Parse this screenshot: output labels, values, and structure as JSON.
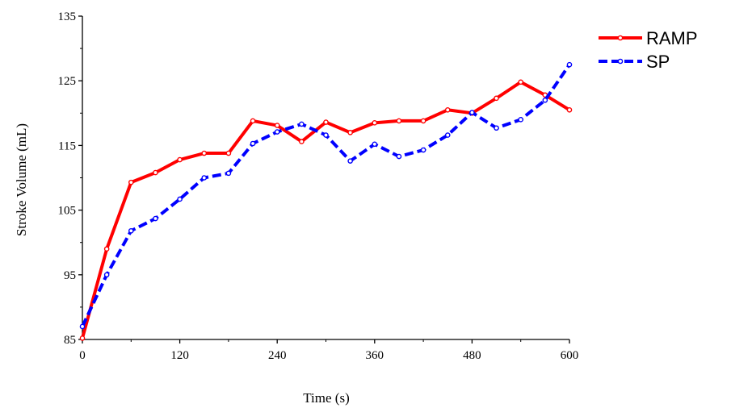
{
  "chart_data": {
    "type": "line",
    "title": "",
    "xlabel": "Time (s)",
    "ylabel": "Stroke Volume (mL)",
    "xlim": [
      0,
      600
    ],
    "ylim": [
      85,
      135
    ],
    "xticks": [
      0,
      120,
      240,
      360,
      480,
      600
    ],
    "yticks": [
      85,
      95,
      105,
      115,
      125,
      135
    ],
    "grid": false,
    "legend_position": "top-right",
    "x": [
      0,
      30,
      60,
      90,
      120,
      150,
      180,
      210,
      240,
      270,
      300,
      330,
      360,
      390,
      420,
      450,
      480,
      510,
      540,
      570,
      600
    ],
    "series": [
      {
        "name": "RAMP",
        "color": "#ff0000",
        "style": "solid",
        "values": [
          85.2,
          99.0,
          109.3,
          110.8,
          112.8,
          113.8,
          113.8,
          118.8,
          118.1,
          115.6,
          118.6,
          117.0,
          118.5,
          118.8,
          118.8,
          120.5,
          120.0,
          122.3,
          124.8,
          122.8,
          120.5
        ]
      },
      {
        "name": "SP",
        "color": "#0000ff",
        "style": "dashed",
        "values": [
          87.0,
          95.0,
          101.8,
          103.7,
          106.7,
          110.0,
          110.7,
          115.3,
          117.1,
          118.3,
          116.6,
          112.6,
          115.2,
          113.3,
          114.3,
          116.6,
          120.1,
          117.7,
          119.0,
          122.0,
          127.5
        ]
      }
    ]
  }
}
